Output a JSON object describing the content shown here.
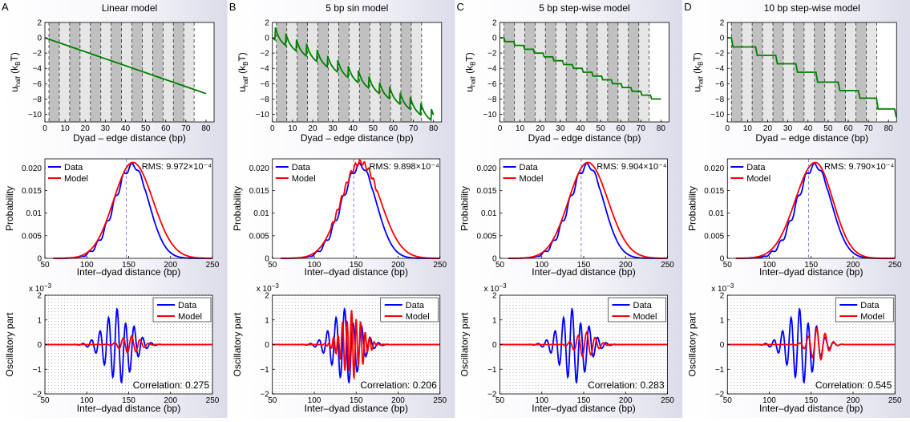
{
  "panels": [
    {
      "letter": "A",
      "title": "Linear model",
      "model": "linear",
      "rms_text": "RMS: 9.972×10⁻⁴",
      "correlation_text": "Correlation: 0.275",
      "osc_model_amp": 0.35
    },
    {
      "letter": "B",
      "title": "5 bp sin model",
      "model": "sin5",
      "rms_text": "RMS: 9.898×10⁻⁴",
      "correlation_text": "Correlation: 0.206",
      "osc_model_amp": 1.25
    },
    {
      "letter": "C",
      "title": "5 bp step-wise model",
      "model": "step5",
      "rms_text": "RMS: 9.904×10⁻⁴",
      "correlation_text": "Correlation: 0.283",
      "osc_model_amp": 0.5
    },
    {
      "letter": "D",
      "title": "10 bp step-wise model",
      "model": "step10",
      "rms_text": "RMS: 9.790×10⁻⁴",
      "correlation_text": "Correlation: 0.545",
      "osc_model_amp": 0.65
    }
  ],
  "row_labels": {
    "top_ylabel_main": "u",
    "top_ylabel_sub": "half",
    "top_ylabel_unit": "(k",
    "top_ylabel_unit_sub": "B",
    "top_ylabel_unit_end": "T)",
    "top_xlabel": "Dyad – edge distance (bp)",
    "mid_ylabel": "Probability",
    "mid_xlabel": "Inter–dyad distance (bp)",
    "bot_ylabel": "Oscillatory part",
    "bot_xlabel": "Inter–dyad distance (bp)",
    "bot_scale_text": "x 10",
    "bot_scale_exp": "−3"
  },
  "legend": {
    "data": "Data",
    "model": "Model"
  },
  "colors": {
    "data": "#0000ff",
    "model": "#ff0000",
    "energy": "#008000",
    "band_dark": "#c0c0c0",
    "band_light": "#e6e6e6",
    "dashed": "#6666dd"
  },
  "chart_data": [
    {
      "type": "line",
      "title": "Linear model",
      "subplots": [
        {
          "name": "energy",
          "xlabel": "Dyad – edge distance (bp)",
          "ylabel": "u_half (k_B T)",
          "xlim": [
            0,
            84
          ],
          "ylim": [
            -11,
            2
          ],
          "xticks": [
            0,
            10,
            20,
            30,
            40,
            50,
            60,
            70,
            80
          ],
          "yticks": [
            2,
            0,
            -2,
            -4,
            -6,
            -8,
            -10
          ],
          "series": [
            {
              "name": "energy",
              "x": [
                0,
                80
              ],
              "y": [
                0,
                -7.3
              ]
            }
          ]
        },
        {
          "name": "distribution",
          "xlabel": "Inter–dyad distance (bp)",
          "ylabel": "Probability",
          "xlim": [
            50,
            250
          ],
          "ylim": [
            0,
            0.022
          ],
          "xticks": [
            50,
            100,
            150,
            200,
            250
          ],
          "yticks": [
            0,
            0.005,
            0.01,
            0.015,
            0.02
          ],
          "series": [
            {
              "name": "Data",
              "peak": 155,
              "max": 0.021
            },
            {
              "name": "Model",
              "peak": 155,
              "max": 0.021
            }
          ]
        },
        {
          "name": "oscillatory",
          "xlabel": "Inter–dyad distance (bp)",
          "ylabel": "Oscillatory part",
          "xlim": [
            50,
            250
          ],
          "ylim": [
            -2,
            2
          ],
          "xticks": [
            50,
            100,
            150,
            200,
            250
          ],
          "yticks": [
            2,
            1,
            0,
            -1,
            -2
          ],
          "scale": "1e-3"
        }
      ]
    },
    {
      "type": "line",
      "title": "5 bp sin model",
      "subplots": [
        {
          "name": "energy",
          "xlim": [
            0,
            84
          ],
          "ylim": [
            -11,
            2
          ],
          "series": [
            {
              "name": "energy",
              "x": [
                0,
                80
              ],
              "y": [
                1.5,
                -9.5
              ]
            }
          ]
        },
        {
          "name": "distribution",
          "xlim": [
            50,
            250
          ],
          "ylim": [
            0,
            0.022
          ]
        },
        {
          "name": "oscillatory",
          "xlim": [
            50,
            250
          ],
          "ylim": [
            -2,
            2
          ]
        }
      ]
    },
    {
      "type": "line",
      "title": "5 bp step-wise model",
      "subplots": [
        {
          "name": "energy",
          "xlim": [
            0,
            84
          ],
          "ylim": [
            -11,
            2
          ],
          "series": [
            {
              "name": "energy",
              "x": [
                0,
                80
              ],
              "y": [
                0,
                -7.8
              ]
            }
          ]
        },
        {
          "name": "distribution",
          "xlim": [
            50,
            250
          ],
          "ylim": [
            0,
            0.022
          ]
        },
        {
          "name": "oscillatory",
          "xlim": [
            50,
            250
          ],
          "ylim": [
            -2,
            2
          ]
        }
      ]
    },
    {
      "type": "line",
      "title": "10 bp step-wise model",
      "subplots": [
        {
          "name": "energy",
          "xlim": [
            0,
            84
          ],
          "ylim": [
            -11,
            2
          ],
          "series": [
            {
              "name": "energy",
              "x": [
                0,
                84
              ],
              "y": [
                0,
                -10.3
              ]
            }
          ]
        },
        {
          "name": "distribution",
          "xlim": [
            50,
            250
          ],
          "ylim": [
            0,
            0.022
          ]
        },
        {
          "name": "oscillatory",
          "xlim": [
            50,
            250
          ],
          "ylim": [
            -2,
            2
          ]
        }
      ]
    }
  ]
}
